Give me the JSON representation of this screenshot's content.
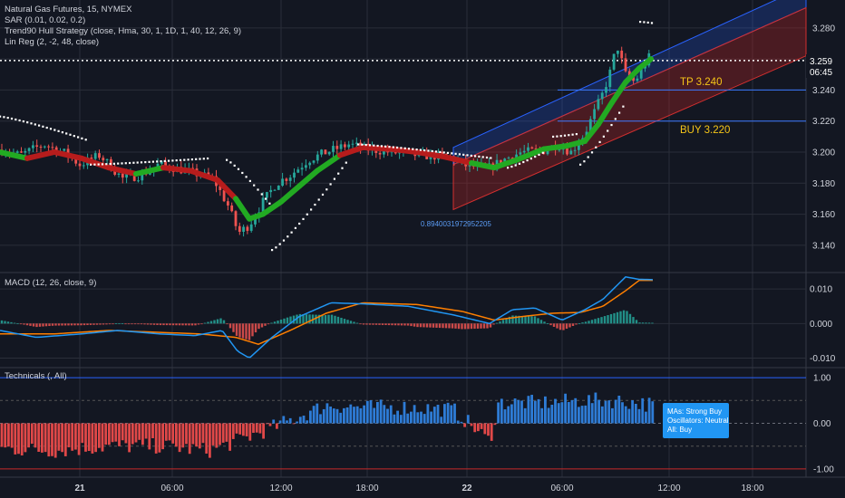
{
  "chart_data": [
    {
      "type": "line",
      "pane": "price",
      "title": "Natural Gas Futures, 15, NYMEX",
      "indicators": [
        "SAR (0.01, 0.02, 0.2)",
        "Trend90 Hull Strategy (close, Hma, 30, 1, 1D, 1, 40, 12, 26, 9)",
        "Lin Reg (2, -2, 48, close)"
      ],
      "ylim": [
        3.123,
        3.298
      ],
      "yticks": [
        "3.280",
        "3.260",
        "3.240",
        "3.220",
        "3.200",
        "3.180",
        "3.160",
        "3.140"
      ],
      "last_price": "3.259",
      "countdown": "06:45",
      "annotations": {
        "tp": "TP 3.240",
        "buy": "BUY 3.220",
        "linreg_value": "0.8940031972952205"
      },
      "levels": {
        "tp": 3.24,
        "buy": 3.22,
        "last": 3.259
      },
      "price_path_x": [
        0,
        22,
        48,
        70,
        88,
        110,
        135,
        155,
        175,
        205,
        235,
        252,
        263,
        275,
        290,
        305,
        320,
        340,
        360,
        385,
        405,
        430,
        460,
        495,
        515,
        540,
        555,
        575,
        600,
        615,
        630,
        645,
        665,
        675,
        680,
        690,
        700,
        715
      ],
      "price_path": [
        3.202,
        3.198,
        3.205,
        3.2,
        3.192,
        3.198,
        3.183,
        3.185,
        3.192,
        3.188,
        3.183,
        3.165,
        3.148,
        3.153,
        3.168,
        3.18,
        3.185,
        3.195,
        3.2,
        3.205,
        3.202,
        3.2,
        3.198,
        3.197,
        3.191,
        3.19,
        3.195,
        3.2,
        3.201,
        3.205,
        3.2,
        3.212,
        3.238,
        3.255,
        3.27,
        3.25,
        3.245,
        3.261
      ]
    },
    {
      "type": "line",
      "pane": "macd",
      "title": "MACD (12, 26, close, 9)",
      "ylim": [
        -0.0125,
        0.0145
      ],
      "yticks": [
        "0.010",
        "0.000",
        "-0.010"
      ],
      "series": [
        {
          "name": "",
          "role": "macd",
          "color": "#2196f3",
          "x": [
            0,
            40,
            90,
            130,
            175,
            215,
            245,
            262,
            275,
            300,
            330,
            365,
            400,
            450,
            500,
            540,
            565,
            590,
            620,
            645,
            665,
            690,
            705,
            722
          ],
          "values": [
            -0.002,
            -0.004,
            -0.003,
            -0.002,
            -0.003,
            -0.0035,
            -0.002,
            -0.008,
            -0.01,
            -0.004,
            0.002,
            0.006,
            0.0057,
            0.005,
            0.0025,
            0.0,
            0.004,
            0.0045,
            0.001,
            0.004,
            0.007,
            0.0135,
            0.0128,
            0.0127
          ]
        },
        {
          "name": "",
          "role": "signal",
          "color": "#ff7f00",
          "x": [
            0,
            60,
            120,
            170,
            220,
            260,
            285,
            320,
            360,
            400,
            460,
            510,
            545,
            575,
            610,
            640,
            665,
            690,
            705,
            722
          ],
          "values": [
            -0.003,
            -0.003,
            -0.002,
            -0.0025,
            -0.003,
            -0.004,
            -0.006,
            -0.002,
            0.003,
            0.006,
            0.0055,
            0.0035,
            0.001,
            0.002,
            0.003,
            0.0032,
            0.005,
            0.0095,
            0.0125,
            0.0125
          ]
        }
      ]
    },
    {
      "type": "bar",
      "pane": "technicals",
      "title": "Technicals (, All)",
      "ylim": [
        -1.18,
        1.2
      ],
      "yticks": [
        "1.00",
        "0.00",
        "-1.00"
      ],
      "summary": {
        "mas": "MAs:     Strong Buy",
        "osc": "Oscillators: Neutral",
        "all": "All:   Buy"
      }
    },
    {
      "type": "line",
      "pane": "time-axis",
      "x_ticks": [
        "21",
        "06:00",
        "12:00",
        "18:00",
        "22",
        "06:00",
        "12:00",
        "18:00"
      ]
    }
  ],
  "colors": {
    "background": "#131722",
    "grid": "#2a2e39",
    "text": "#d1d4dc",
    "candle_up": "#26a69a",
    "candle_down": "#ef5350",
    "hull_up": "#22aa22",
    "hull_down": "#b71c1c",
    "channel_fill": "#2962ff",
    "channel_lower_fill": "#b22222",
    "level_line": "#3a78ff",
    "annotation_text": "#f5c518",
    "macd": "#2196f3",
    "signal": "#ff7f00",
    "hist_pos": "#26a69a",
    "hist_neg": "#ef5350",
    "tech_pos": "#2e7cd6",
    "tech_neg": "#e04848",
    "summary_box": "#2196f3"
  }
}
